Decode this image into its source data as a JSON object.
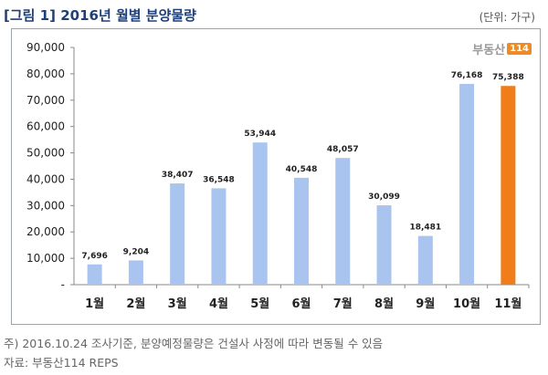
{
  "title": "[그림 1] 2016년 월별 분양물량",
  "unit": "(단위: 가구)",
  "logo": {
    "text": "부동산",
    "badge": "114"
  },
  "notes": {
    "line1": "주) 2016.10.24 조사기준, 분양예정물량은 건설사 사정에 따라 변동될 수 있음",
    "line2": "자료: 부동산114 REPS"
  },
  "chart_data": {
    "type": "bar",
    "categories": [
      "1월",
      "2월",
      "3월",
      "4월",
      "5월",
      "6월",
      "7월",
      "8월",
      "9월",
      "10월",
      "11월"
    ],
    "values": [
      7696,
      9204,
      38407,
      36548,
      53944,
      40548,
      48057,
      30099,
      18481,
      76168,
      75388
    ],
    "data_labels": [
      "7,696",
      "9,204",
      "38,407",
      "36,548",
      "53,944",
      "40,548",
      "48,057",
      "30,099",
      "18,481",
      "76,168",
      "75,388"
    ],
    "highlight_index": 10,
    "ylim": [
      0,
      90000
    ],
    "yticks": [
      0,
      10000,
      20000,
      30000,
      40000,
      50000,
      60000,
      70000,
      80000,
      90000
    ],
    "ytick_labels": [
      "-",
      "10,000",
      "20,000",
      "30,000",
      "40,000",
      "50,000",
      "60,000",
      "70,000",
      "80,000",
      "90,000"
    ],
    "grid": false,
    "colors": {
      "bar": "#a9c4ee",
      "highlight": "#f07d1a",
      "axis": "#888888",
      "text": "#222222"
    }
  }
}
